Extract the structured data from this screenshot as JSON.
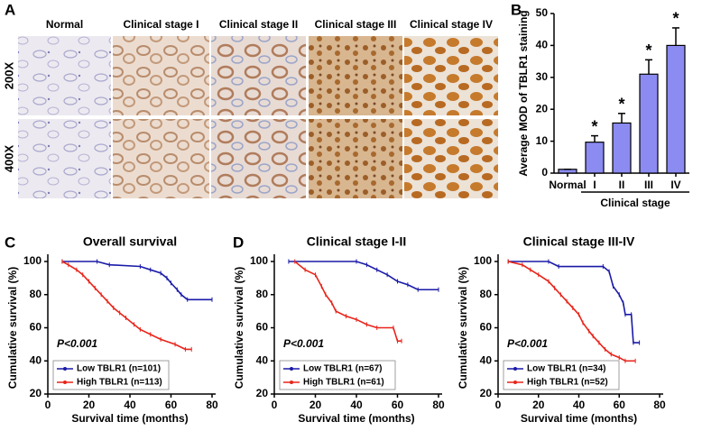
{
  "panel_labels": [
    "A",
    "B",
    "C",
    "D"
  ],
  "image_panel": {
    "columns": [
      "Normal",
      "Clinical stage I",
      "Clinical stage II",
      "Clinical stage III",
      "Clinical stage IV"
    ],
    "rows": [
      "200X",
      "400X"
    ]
  },
  "chart_data": [
    {
      "type": "bar",
      "categories": [
        "Normal",
        "I",
        "II",
        "III",
        "IV"
      ],
      "values": [
        1.2,
        9.7,
        15.7,
        31,
        40
      ],
      "errors": [
        0,
        2,
        3,
        4.5,
        5.5
      ],
      "significance": [
        null,
        "*",
        "*",
        "*",
        "*"
      ],
      "color": "#8b8bf2",
      "ylabel": "Average MOD of TBLR1 staining",
      "xlabel": "Clinical stage",
      "ylim": [
        0,
        50
      ],
      "yticks": [
        0,
        10,
        20,
        30,
        40,
        50
      ]
    },
    {
      "type": "line",
      "title": "Overall survival",
      "annotation": "P<0.001",
      "xlabel": "Survival time (months)",
      "ylabel": "Cumulative survival (%)",
      "xlim": [
        0,
        80
      ],
      "xticks": [
        0,
        20,
        40,
        60,
        80
      ],
      "ylim": [
        20,
        100
      ],
      "yticks": [
        20,
        40,
        60,
        80,
        100
      ],
      "series": [
        {
          "name": "Low TBLR1 (n=101)",
          "color": "#1a1aa8",
          "x": [
            7,
            24,
            30,
            45,
            50,
            55,
            58,
            60,
            63,
            65,
            68,
            80
          ],
          "values": [
            100,
            100,
            98,
            97,
            95,
            93,
            90,
            87,
            83,
            80,
            77,
            77
          ]
        },
        {
          "name": "High TBLR1 (n=113)",
          "color": "#e8241a",
          "x": [
            7,
            10,
            14,
            17,
            20,
            23,
            26,
            29,
            32,
            35,
            38,
            42,
            45,
            50,
            55,
            62,
            67,
            70
          ],
          "values": [
            100,
            98,
            95,
            92,
            88,
            84,
            80,
            76,
            72,
            69,
            66,
            62,
            59,
            56,
            53,
            50,
            47,
            47
          ]
        }
      ]
    },
    {
      "type": "line",
      "title": "Clinical stage I-II",
      "annotation": "P<0.001",
      "xlabel": "Survival time (months)",
      "ylabel": "Cumulative survival (%)",
      "xlim": [
        0,
        80
      ],
      "xticks": [
        0,
        20,
        40,
        60,
        80
      ],
      "ylim": [
        20,
        100
      ],
      "yticks": [
        20,
        40,
        60,
        80,
        100
      ],
      "series": [
        {
          "name": "Low TBLR1 (n=67)",
          "color": "#1a1aa8",
          "x": [
            7,
            40,
            45,
            50,
            55,
            60,
            65,
            70,
            80
          ],
          "values": [
            100,
            100,
            98,
            95,
            92,
            88,
            86,
            83,
            83
          ]
        },
        {
          "name": "High TBLR1 (n=61)",
          "color": "#e8241a",
          "x": [
            10,
            15,
            20,
            23,
            25,
            28,
            30,
            35,
            40,
            45,
            50,
            58,
            60,
            62
          ],
          "values": [
            100,
            95,
            92,
            85,
            80,
            75,
            70,
            67,
            65,
            62,
            60,
            60,
            52,
            52
          ]
        }
      ]
    },
    {
      "type": "line",
      "title": "Clinical stage III-IV",
      "annotation": "P<0.001",
      "xlabel": "Survival time (months)",
      "ylabel": "Cumulative survival (%)",
      "xlim": [
        0,
        80
      ],
      "xticks": [
        0,
        20,
        40,
        60,
        80
      ],
      "ylim": [
        20,
        100
      ],
      "yticks": [
        20,
        40,
        60,
        80,
        100
      ],
      "series": [
        {
          "name": "Low TBLR1 (n=34)",
          "color": "#1a1aa8",
          "x": [
            5,
            25,
            30,
            52,
            55,
            57,
            60,
            62,
            63,
            66,
            67,
            70
          ],
          "values": [
            100,
            100,
            97,
            97,
            94,
            85,
            80,
            75,
            68,
            68,
            51,
            51
          ]
        },
        {
          "name": "High TBLR1 (n=52)",
          "color": "#e8241a",
          "x": [
            5,
            12,
            16,
            20,
            25,
            28,
            31,
            34,
            37,
            40,
            42,
            45,
            47,
            50,
            53,
            56,
            60,
            63,
            68
          ],
          "values": [
            100,
            98,
            95,
            92,
            88,
            84,
            80,
            76,
            72,
            68,
            63,
            58,
            55,
            51,
            47,
            44,
            42,
            40,
            40
          ]
        }
      ]
    }
  ]
}
